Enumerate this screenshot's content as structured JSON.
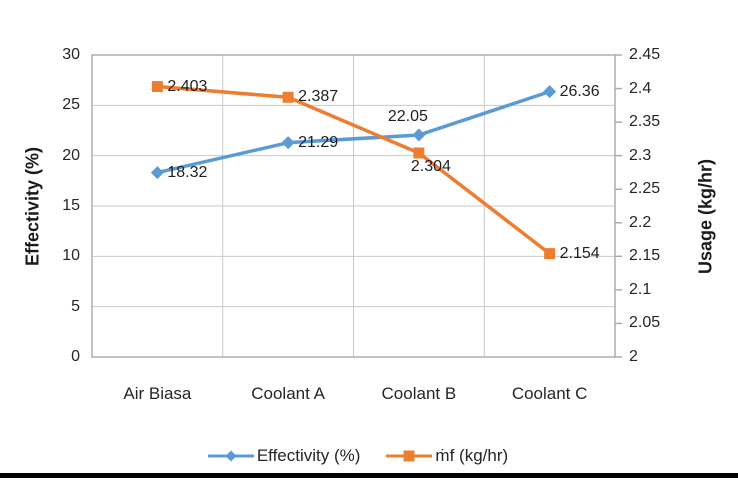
{
  "chart_data": {
    "type": "line",
    "categories": [
      "Air Biasa",
      "Coolant A",
      "Coolant B",
      "Coolant C"
    ],
    "series": [
      {
        "name": "Effectivity (%)",
        "axis": "left",
        "color": "#5B9BD5",
        "marker": "diamond",
        "values": [
          18.32,
          21.29,
          22.05,
          26.36
        ],
        "labels": [
          "18.32",
          "21.29",
          "22.05",
          "26.36"
        ],
        "label_positions": [
          "right",
          "right",
          "above",
          "right"
        ]
      },
      {
        "name": "ṁf (kg/hr)",
        "axis": "right",
        "color": "#ED7D31",
        "marker": "square",
        "values": [
          2.403,
          2.387,
          2.304,
          2.154
        ],
        "labels": [
          "2.403",
          "2.387",
          "2.304",
          "2.154"
        ],
        "label_positions": [
          "right",
          "right",
          "below-right",
          "right"
        ]
      }
    ],
    "left_axis": {
      "title": "Effectivity (%)",
      "min": 0,
      "max": 30,
      "step": 5,
      "tick_labels": [
        "0",
        "5",
        "10",
        "15",
        "20",
        "25",
        "30"
      ]
    },
    "right_axis": {
      "title": "Usage (kg/hr)",
      "min": 2,
      "max": 2.45,
      "step": 0.05,
      "tick_labels": [
        "2",
        "2.05",
        "2.1",
        "2.15",
        "2.2",
        "2.25",
        "2.3",
        "2.35",
        "2.4",
        "2.45"
      ]
    },
    "grid": {
      "horizontal": true,
      "vertical": true
    },
    "legend_position": "bottom",
    "title": "",
    "colors": {
      "gridline": "#c9c9c9",
      "plot_border": "#a8a8a8",
      "text": "#262626"
    }
  }
}
